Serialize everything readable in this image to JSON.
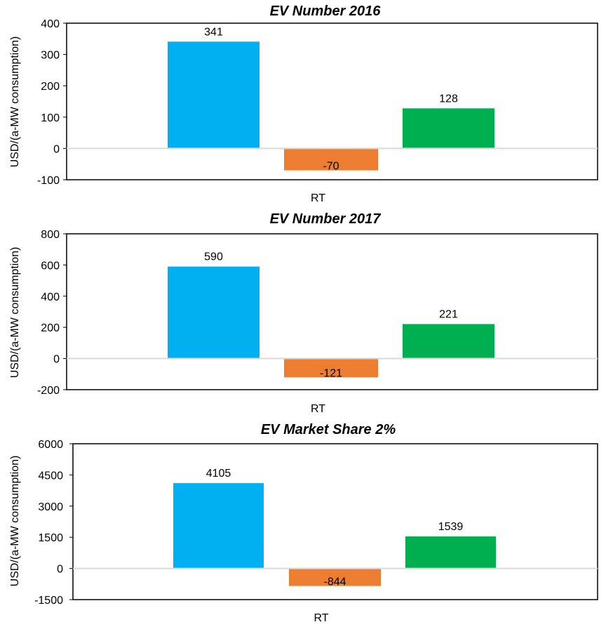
{
  "chart_data": [
    {
      "type": "bar",
      "title": "EV Number 2016",
      "xlabel": "RT",
      "ylabel": "USD/(a-MW consumption)",
      "ylim": [
        -100,
        400
      ],
      "yticks": [
        400,
        300,
        200,
        100,
        0,
        -100
      ],
      "grid": false,
      "legend": "none",
      "values": [
        341,
        -70,
        128
      ],
      "data_labels": [
        "341",
        "-70",
        "128"
      ],
      "colors": [
        "#00b0f0",
        "#ed7d31",
        "#00b050"
      ]
    },
    {
      "type": "bar",
      "title": "EV Number 2017",
      "xlabel": "RT",
      "ylabel": "USD/(a-MW consumption)",
      "ylim": [
        -200,
        800
      ],
      "yticks": [
        800,
        600,
        400,
        200,
        0,
        -200
      ],
      "grid": false,
      "legend": "none",
      "values": [
        590,
        -121,
        221
      ],
      "data_labels": [
        "590",
        "-121",
        "221"
      ],
      "colors": [
        "#00b0f0",
        "#ed7d31",
        "#00b050"
      ]
    },
    {
      "type": "bar",
      "title": "EV Market Share 2%",
      "xlabel": "RT",
      "ylabel": "USD/(a-MW consumption)",
      "ylim": [
        -1500,
        6000
      ],
      "yticks": [
        6000,
        4500,
        3000,
        1500,
        0,
        -1500
      ],
      "grid": false,
      "legend": "none",
      "values": [
        4105,
        -844,
        1539
      ],
      "data_labels": [
        "4105",
        "-844",
        "1539"
      ],
      "colors": [
        "#00b0f0",
        "#ed7d31",
        "#00b050"
      ]
    }
  ]
}
